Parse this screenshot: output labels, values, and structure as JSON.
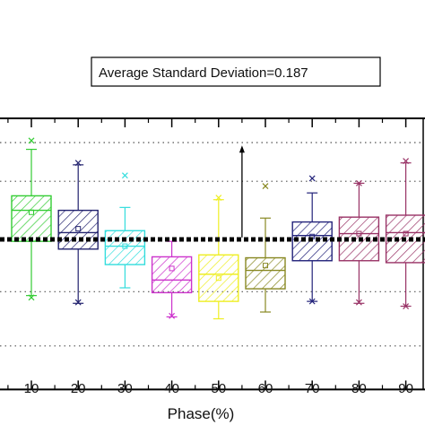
{
  "chart_data": {
    "type": "box",
    "xlabel": "Phase(%)",
    "ylabel": "",
    "categories": [
      "10",
      "20",
      "30",
      "40",
      "50",
      "60",
      "70",
      "80",
      "90"
    ],
    "y_range": [
      -1.55,
      1.25
    ],
    "boxes": [
      {
        "category": "10",
        "color": "#33cc33",
        "whisker_low": -0.58,
        "q1": -0.02,
        "median": 0.3,
        "mean": 0.28,
        "q3": 0.45,
        "whisker_high": 0.93,
        "outliers": [
          -0.6,
          1.02
        ]
      },
      {
        "category": "20",
        "color": "#22226e",
        "whisker_low": -0.66,
        "q1": -0.1,
        "median": 0.07,
        "mean": 0.11,
        "q3": 0.3,
        "whisker_high": 0.77,
        "outliers": [
          -0.65,
          0.79
        ]
      },
      {
        "category": "30",
        "color": "#33dddd",
        "whisker_low": -0.5,
        "q1": -0.26,
        "median": -0.07,
        "mean": -0.07,
        "q3": 0.09,
        "whisker_high": 0.33,
        "outliers": [
          0.66
        ]
      },
      {
        "category": "40",
        "color": "#cc33cc",
        "whisker_low": -0.8,
        "q1": -0.55,
        "median": -0.42,
        "mean": -0.3,
        "q3": -0.18,
        "whisker_high": -0.02,
        "outliers": [
          -0.79
        ]
      },
      {
        "category": "50",
        "color": "#eeee22",
        "whisker_low": -0.82,
        "q1": -0.64,
        "median": -0.36,
        "mean": -0.4,
        "q3": -0.16,
        "whisker_high": 0.41,
        "outliers": [
          0.43
        ]
      },
      {
        "category": "60",
        "color": "#888822",
        "whisker_low": -0.75,
        "q1": -0.51,
        "median": -0.32,
        "mean": -0.27,
        "q3": -0.19,
        "whisker_high": 0.22,
        "outliers": [
          0.55
        ]
      },
      {
        "category": "70",
        "color": "#22227a",
        "whisker_low": -0.64,
        "q1": -0.22,
        "median": 0.04,
        "mean": 0.03,
        "q3": 0.18,
        "whisker_high": 0.48,
        "outliers": [
          -0.64,
          0.63
        ]
      },
      {
        "category": "80",
        "color": "#993366",
        "whisker_low": -0.66,
        "q1": -0.22,
        "median": 0.06,
        "mean": 0.06,
        "q3": 0.23,
        "whisker_high": 0.58,
        "outliers": [
          -0.65,
          0.58
        ]
      },
      {
        "category": "90",
        "color": "#993366",
        "whisker_low": -0.69,
        "q1": -0.24,
        "median": 0.07,
        "mean": 0.06,
        "q3": 0.25,
        "whisker_high": 0.79,
        "outliers": [
          -0.69,
          0.81
        ]
      }
    ],
    "reference_line": 0.0,
    "gridlines_y": [
      1.0,
      0.6,
      -0.54,
      -1.1
    ],
    "annotation": {
      "text": "Average Standard Deviation=0.187",
      "arrow_x_category_index": 4.5,
      "arrow_from": 0.02,
      "arrow_to": 0.97
    },
    "colors": {
      "reference_line": "#000000",
      "gridline": "#555555",
      "axis": "#000000"
    }
  }
}
